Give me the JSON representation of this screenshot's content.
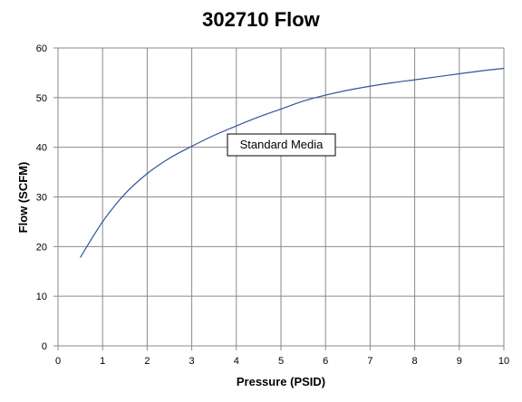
{
  "chart_data": {
    "type": "line",
    "title": "302710 Flow",
    "xlabel": "Pressure (PSID)",
    "ylabel": "Flow (SCFM)",
    "xlim": [
      0,
      10
    ],
    "ylim": [
      0,
      60
    ],
    "xticks": [
      0,
      1,
      2,
      3,
      4,
      5,
      6,
      7,
      8,
      9,
      10
    ],
    "yticks": [
      0,
      10,
      20,
      30,
      40,
      50,
      60
    ],
    "grid": true,
    "annotation": "Standard Media",
    "series": [
      {
        "color": "#2f5597",
        "x": [
          0.5,
          1,
          1.5,
          2,
          2.5,
          3,
          3.5,
          4,
          4.5,
          5,
          5.5,
          6,
          6.5,
          7,
          7.5,
          8,
          8.5,
          9,
          9.5,
          10
        ],
        "y": [
          17.8,
          25,
          30.6,
          34.7,
          37.8,
          40.2,
          42.4,
          44.3,
          46.1,
          47.7,
          49.3,
          50.5,
          51.5,
          52.3,
          53.0,
          53.6,
          54.2,
          54.8,
          55.4,
          55.9
        ]
      }
    ]
  }
}
